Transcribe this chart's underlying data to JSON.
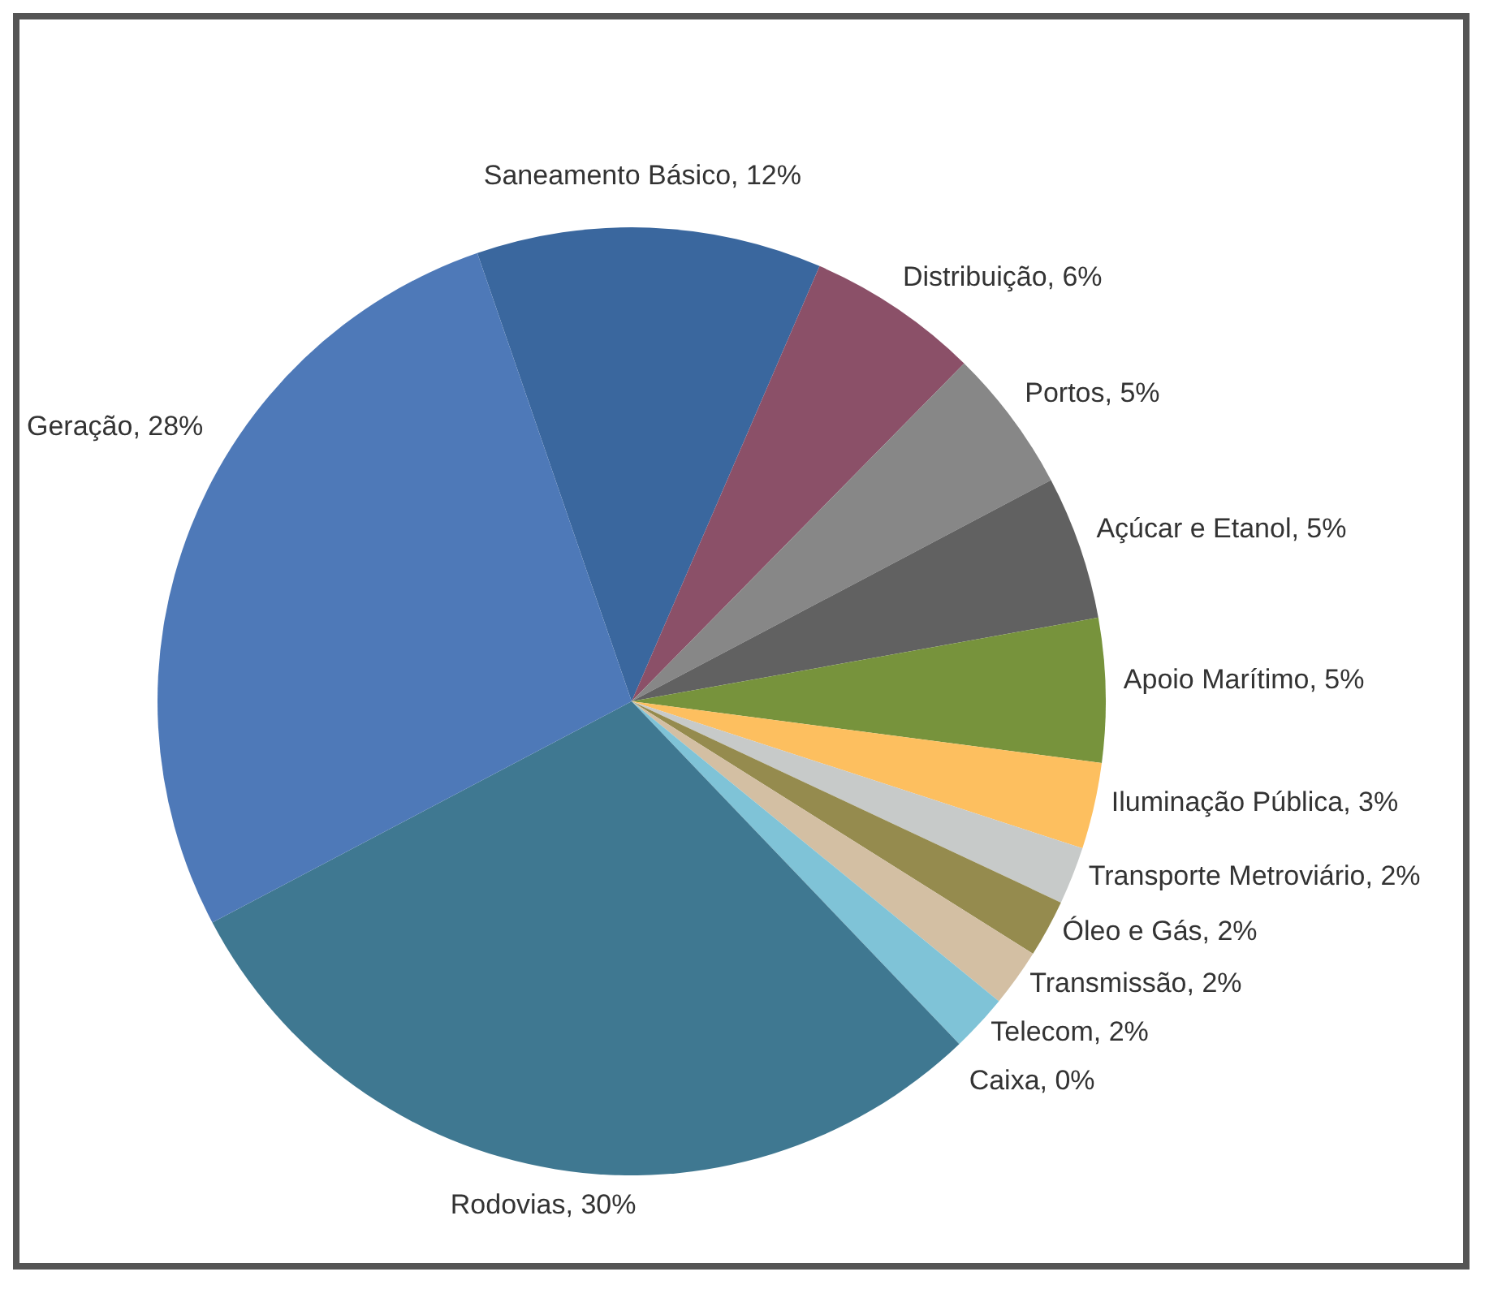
{
  "chart_data": {
    "type": "pie",
    "categories": [
      "Saneamento Básico",
      "Distribuição",
      "Portos",
      "Açúcar e Etanol",
      "Apoio Marítimo",
      "Iluminação Pública",
      "Transporte Metroviário",
      "Óleo e Gás",
      "Transmissão",
      "Telecom",
      "Caixa",
      "Rodovias",
      "Geração"
    ],
    "values": [
      12,
      6,
      5,
      5,
      5,
      3,
      2,
      2,
      2,
      2,
      0,
      30,
      28
    ],
    "value_labels": [
      ", 12%",
      ", 6%",
      ", 5%",
      ", 5%",
      ", 5%",
      ", 3%",
      ", 2%",
      ", 2%",
      ", 2%",
      ", 2%",
      ", 0%",
      ", 30%",
      ", 28%"
    ],
    "colors": [
      "#3a679e",
      "#8b5068",
      "#878787",
      "#616161",
      "#77933c",
      "#fdbf5f",
      "#c7cac9",
      "#958b4e",
      "#d3bfa3",
      "#7fc3d7",
      "#5b75b5",
      "#3f7891",
      "#4e79b8"
    ]
  }
}
